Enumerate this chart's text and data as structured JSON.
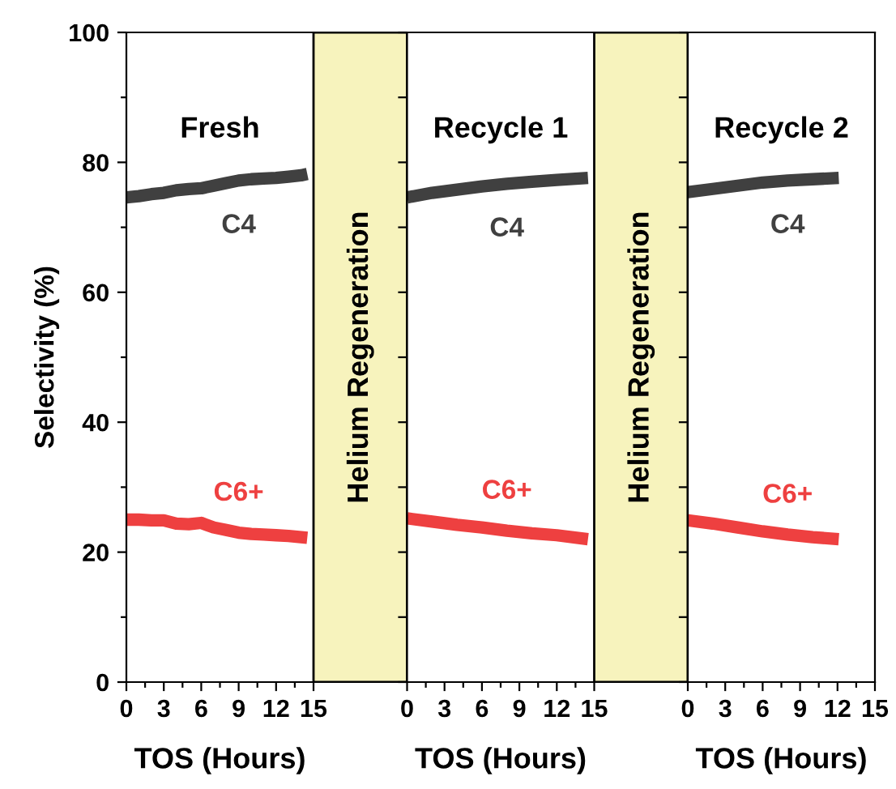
{
  "chart_data": [
    {
      "type": "line",
      "title": "Fresh",
      "xlabel": "TOS (Hours)",
      "ylabel": "Selectivity (%)",
      "marker": "none",
      "line_style": "solid",
      "xlim": [
        0,
        22.5
      ],
      "xticks": [
        0,
        {
          "value": 1.5,
          "label": null
        },
        3,
        {
          "value": 4.5,
          "label": null
        },
        6,
        {
          "value": 7.5,
          "label": null
        },
        9,
        {
          "value": 10.5,
          "label": null
        },
        12,
        {
          "value": 13.5,
          "label": null
        },
        15
      ],
      "ylim": [
        0,
        100
      ],
      "yticks": [
        0,
        {
          "value": 10,
          "label": null
        },
        20,
        {
          "value": 30,
          "label": null
        },
        40,
        {
          "value": 50,
          "label": null
        },
        60,
        {
          "value": 70,
          "label": null
        },
        80,
        {
          "value": 90,
          "label": null
        },
        100
      ],
      "bands": [
        {
          "axis": "x",
          "from": 15,
          "to": 22.5,
          "label": "Helium Regeneration",
          "color": "#f7f3bd"
        }
      ],
      "series": [
        {
          "name": "C4",
          "color": "#404040",
          "x": [
            0,
            1,
            2,
            3,
            4,
            5,
            6,
            7,
            8,
            9,
            10,
            11,
            12,
            13,
            14,
            14.5
          ],
          "values": [
            74.6,
            74.8,
            75.1,
            75.3,
            75.7,
            75.9,
            76.0,
            76.4,
            76.8,
            77.2,
            77.4,
            77.5,
            77.6,
            77.8,
            78.0,
            78.2
          ]
        },
        {
          "name": "C6+",
          "color": "#ee4040",
          "x": [
            0,
            1,
            2,
            3,
            4,
            5,
            6,
            7,
            8,
            9,
            10,
            11,
            12,
            13,
            14,
            14.5
          ],
          "values": [
            25.0,
            25.0,
            24.9,
            24.9,
            24.4,
            24.3,
            24.5,
            23.8,
            23.4,
            23.0,
            22.8,
            22.7,
            22.6,
            22.5,
            22.3,
            22.2
          ]
        }
      ],
      "tick_labels": true
    },
    {
      "type": "line",
      "title": "Recycle 1",
      "xlabel": "TOS (Hours)",
      "marker": "none",
      "line_style": "solid",
      "xlim": [
        0,
        22.5
      ],
      "xticks": [
        0,
        {
          "value": 1.5,
          "label": null
        },
        3,
        {
          "value": 4.5,
          "label": null
        },
        6,
        {
          "value": 7.5,
          "label": null
        },
        9,
        {
          "value": 10.5,
          "label": null
        },
        12,
        {
          "value": 13.5,
          "label": null
        },
        15
      ],
      "ylim": [
        0,
        100
      ],
      "yticks": [
        {
          "value": 0,
          "label": null
        },
        {
          "value": 10,
          "label": null
        },
        {
          "value": 20,
          "label": null
        },
        {
          "value": 30,
          "label": null
        },
        {
          "value": 40,
          "label": null
        },
        {
          "value": 50,
          "label": null
        },
        {
          "value": 60,
          "label": null
        },
        {
          "value": 70,
          "label": null
        },
        {
          "value": 80,
          "label": null
        },
        {
          "value": 90,
          "label": null
        },
        {
          "value": 100,
          "label": null
        }
      ],
      "bands": [
        {
          "axis": "x",
          "from": 15,
          "to": 22.5,
          "label": "Helium Regeneration",
          "color": "#f7f3bd"
        }
      ],
      "series": [
        {
          "name": "C4",
          "color": "#404040",
          "x": [
            0,
            2,
            4,
            6,
            8,
            10,
            12,
            14.5
          ],
          "values": [
            74.6,
            75.3,
            75.8,
            76.3,
            76.7,
            77.0,
            77.3,
            77.6
          ]
        },
        {
          "name": "C6+",
          "color": "#ee4040",
          "x": [
            0,
            2,
            4,
            6,
            8,
            10,
            12,
            14.5
          ],
          "values": [
            25.2,
            24.7,
            24.2,
            23.8,
            23.3,
            22.9,
            22.6,
            22.0
          ]
        }
      ],
      "tick_labels": "x"
    },
    {
      "type": "line",
      "title": "Recycle 2",
      "xlabel": "TOS (Hours)",
      "marker": "none",
      "line_style": "solid",
      "xlim": [
        0,
        15
      ],
      "xticks": [
        0,
        {
          "value": 1.5,
          "label": null
        },
        3,
        {
          "value": 4.5,
          "label": null
        },
        6,
        {
          "value": 7.5,
          "label": null
        },
        9,
        {
          "value": 10.5,
          "label": null
        },
        12,
        {
          "value": 13.5,
          "label": null
        },
        15
      ],
      "ylim": [
        0,
        100
      ],
      "yticks": [
        {
          "value": 0,
          "label": null
        },
        {
          "value": 10,
          "label": null
        },
        {
          "value": 20,
          "label": null
        },
        {
          "value": 30,
          "label": null
        },
        {
          "value": 40,
          "label": null
        },
        {
          "value": 50,
          "label": null
        },
        {
          "value": 60,
          "label": null
        },
        {
          "value": 70,
          "label": null
        },
        {
          "value": 80,
          "label": null
        },
        {
          "value": 90,
          "label": null
        },
        {
          "value": 100,
          "label": null
        }
      ],
      "series": [
        {
          "name": "C4",
          "color": "#404040",
          "x": [
            0,
            2,
            4,
            6,
            8,
            10,
            12.1
          ],
          "values": [
            75.4,
            75.9,
            76.4,
            76.9,
            77.2,
            77.4,
            77.6
          ]
        },
        {
          "name": "C6+",
          "color": "#ee4040",
          "x": [
            0,
            2,
            4,
            6,
            8,
            10,
            12.1
          ],
          "values": [
            24.9,
            24.4,
            23.8,
            23.2,
            22.7,
            22.3,
            22.0
          ]
        }
      ],
      "tick_labels": "x"
    }
  ]
}
